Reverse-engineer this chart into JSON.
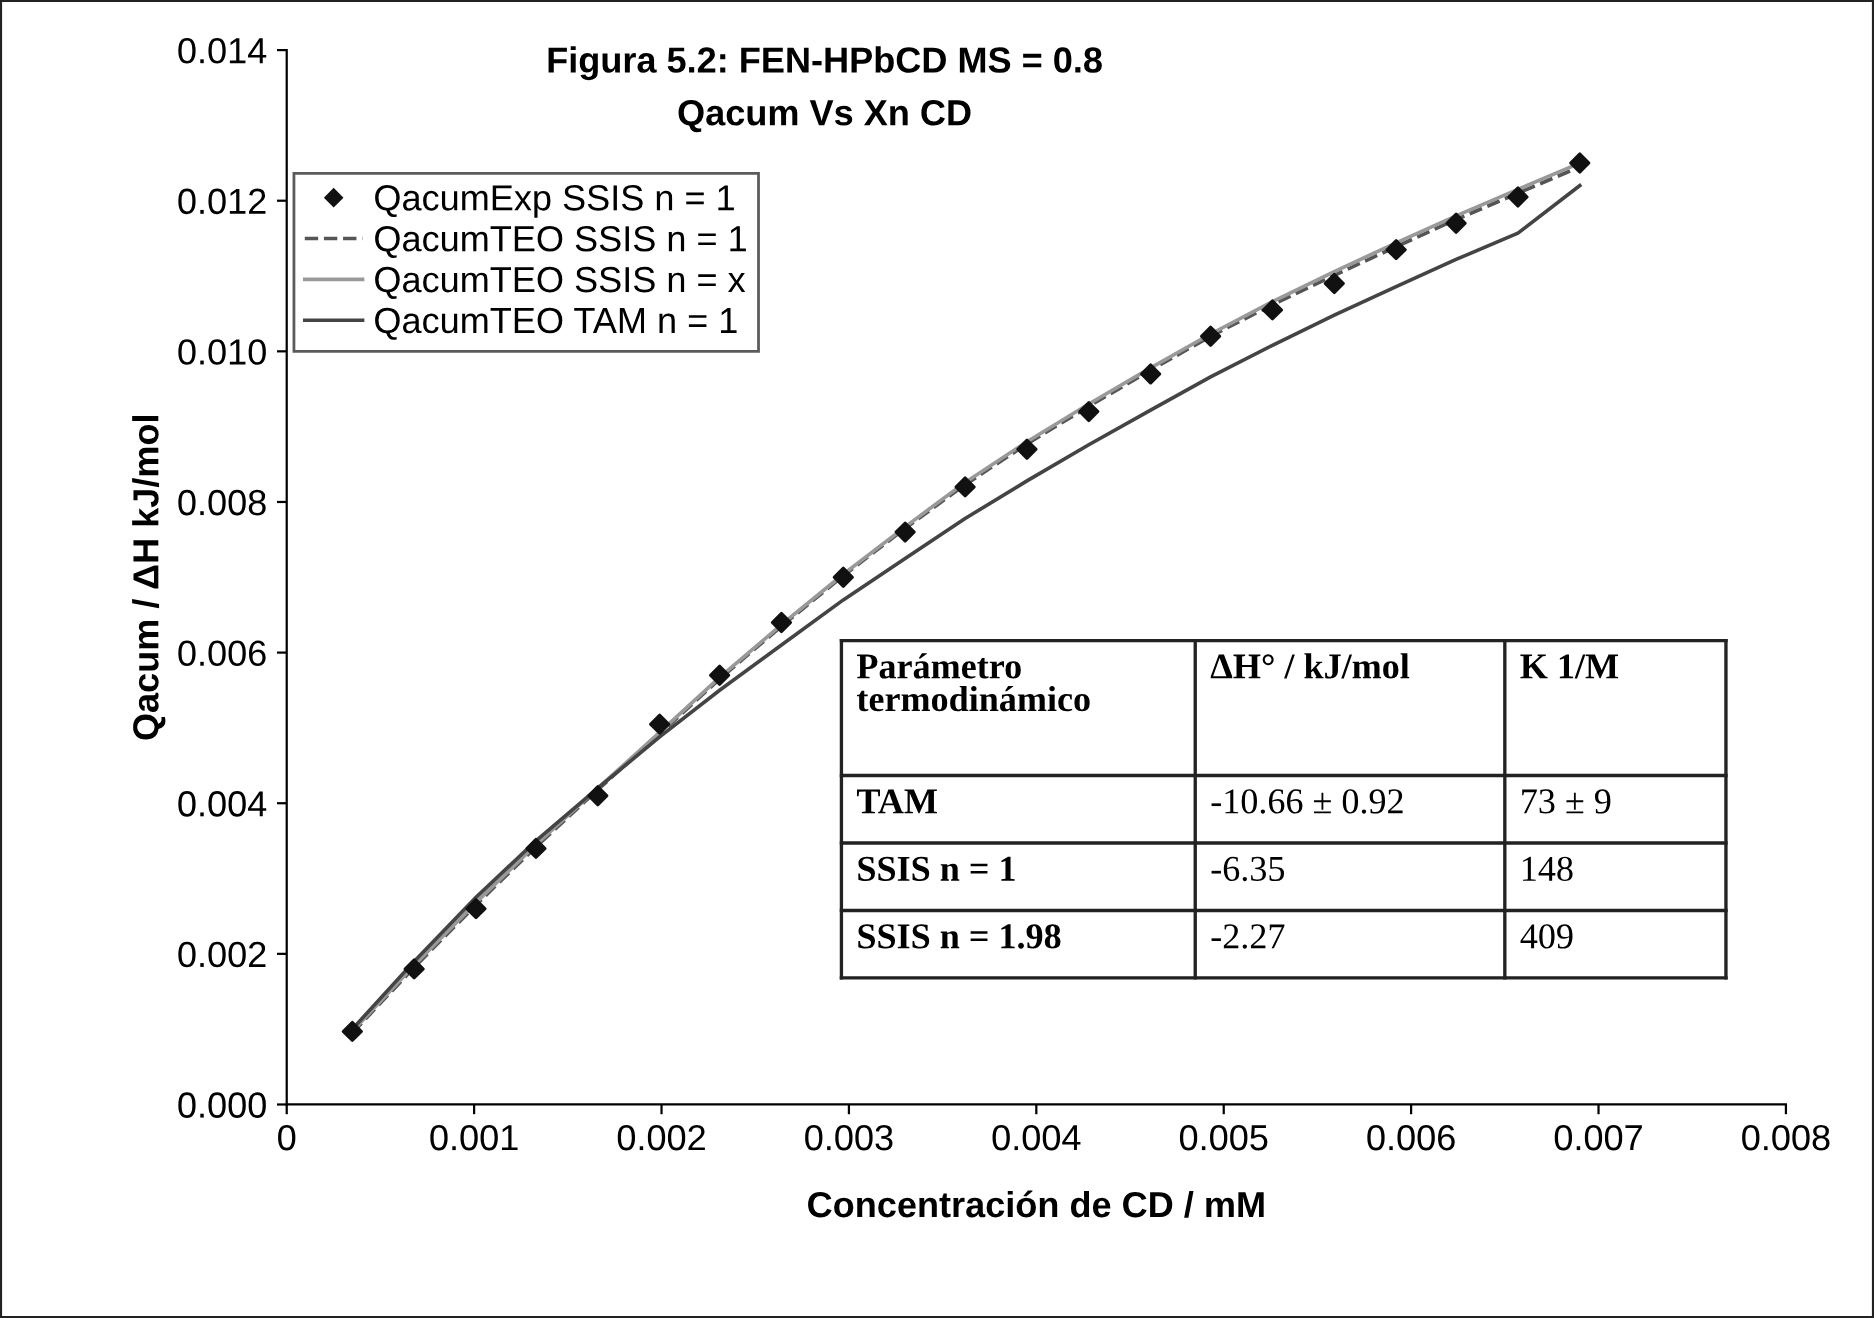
{
  "chart_data": {
    "type": "line",
    "title": "Figura 5.2: FEN-HPbCD MS = 0.8",
    "subtitle": "Qacum Vs Xn CD",
    "xlabel": "Concentración de CD / mM",
    "ylabel": "Qacum / ΔH kJ/mol",
    "x": [
      0.00035,
      0.00068,
      0.00101,
      0.00133,
      0.00166,
      0.00199,
      0.00231,
      0.00264,
      0.00297,
      0.0033,
      0.00362,
      0.00395,
      0.00428,
      0.00461,
      0.00493,
      0.00526,
      0.00559,
      0.00592,
      0.00624,
      0.00657,
      0.0069
    ],
    "series": [
      {
        "name": "QacumExp SSIS n = 1",
        "type": "scatter",
        "marker": "diamond",
        "color": "#111111",
        "values": [
          0.00097,
          0.0018,
          0.0026,
          0.0034,
          0.0041,
          0.00505,
          0.0057,
          0.0064,
          0.007,
          0.0076,
          0.0082,
          0.0087,
          0.0092,
          0.0097,
          0.0102,
          0.01055,
          0.0109,
          0.01135,
          0.0117,
          0.01205,
          0.0125
        ]
      },
      {
        "name": "QacumTEO SSIS n = 1",
        "marker": "none",
        "line_style": "dashed",
        "color": "#555555",
        "values": [
          0.00095,
          0.00182,
          0.00265,
          0.00342,
          0.00418,
          0.00492,
          0.00565,
          0.00635,
          0.00702,
          0.00765,
          0.00823,
          0.00877,
          0.00927,
          0.00975,
          0.0102,
          0.01062,
          0.01101,
          0.01139,
          0.01175,
          0.0121,
          0.01245
        ]
      },
      {
        "name": "QacumTEO SSIS n = x",
        "marker": "none",
        "line_style": "solid",
        "color": "#999999",
        "values": [
          0.00097,
          0.00185,
          0.00268,
          0.00345,
          0.0042,
          0.00494,
          0.00567,
          0.00637,
          0.00704,
          0.00767,
          0.00826,
          0.0088,
          0.0093,
          0.00978,
          0.01023,
          0.01066,
          0.01106,
          0.01144,
          0.0118,
          0.01215,
          0.0125
        ]
      },
      {
        "name": "QacumTEO TAM n = 1",
        "marker": "none",
        "line_style": "solid",
        "color": "#444444",
        "values": [
          0.001,
          0.0019,
          0.00275,
          0.0035,
          0.0042,
          0.00488,
          0.0055,
          0.0061,
          0.0067,
          0.00725,
          0.00778,
          0.00828,
          0.00876,
          0.00922,
          0.00966,
          0.01008,
          0.01048,
          0.01086,
          0.01122,
          0.01157,
          0.0122
        ]
      }
    ],
    "xlim": [
      0,
      0.008
    ],
    "xticks": [
      0,
      0.001,
      0.002,
      0.003,
      0.004,
      0.005,
      0.006,
      0.007,
      0.008
    ],
    "ylim": [
      0,
      0.014
    ],
    "yticks": [
      {
        "value": 0,
        "label": "0.000"
      },
      {
        "value": 0.002,
        "label": "0.002"
      },
      {
        "value": 0.004,
        "label": "0.004"
      },
      {
        "value": 0.006,
        "label": "0.006"
      },
      {
        "value": 0.008,
        "label": "0.008"
      },
      {
        "value": 0.01,
        "label": "0.010"
      },
      {
        "value": 0.012,
        "label": "0.012"
      },
      {
        "value": 0.014,
        "label": "0.014"
      }
    ],
    "grid": false,
    "legend": "top left",
    "annotations": [
      "Parámetro\ntermodinámico",
      "ΔH° / kJ/mol",
      "K 1/M",
      "TAM",
      "-10.66 ± 0.92",
      "73 ± 9",
      "SSIS n = 1",
      "-6.35",
      "148",
      "SSIS n = 1.98",
      "-2.27",
      "409"
    ]
  }
}
